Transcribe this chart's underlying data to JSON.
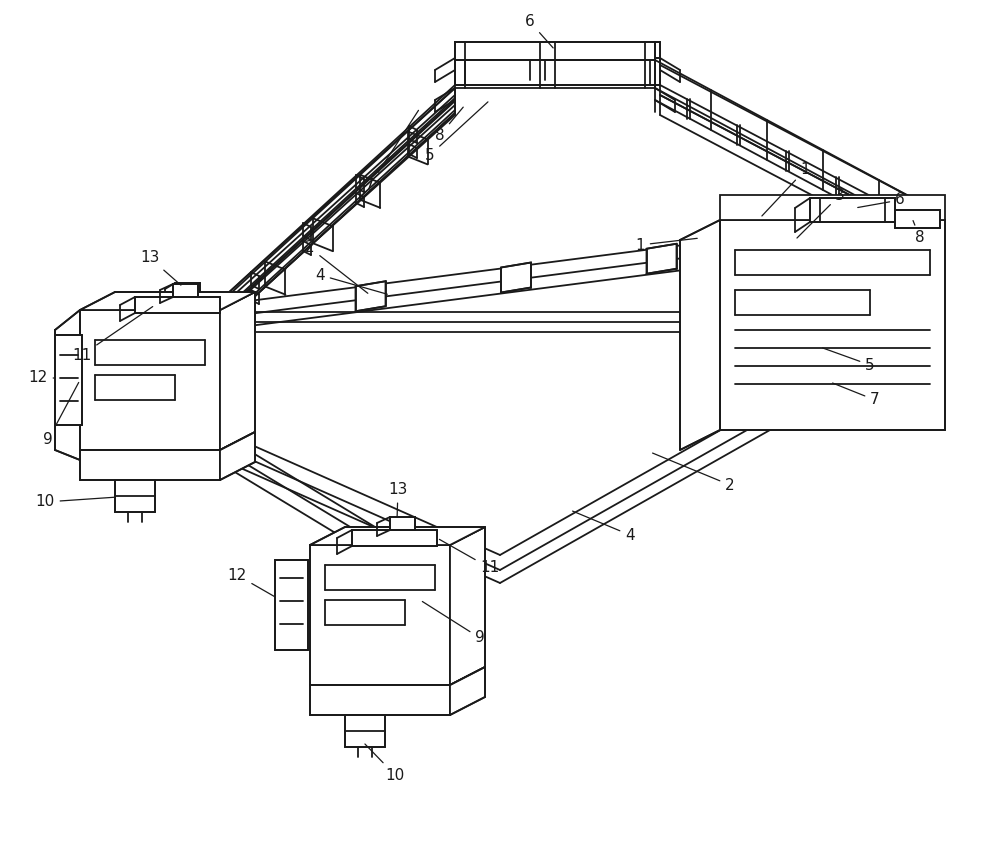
{
  "background_color": "#ffffff",
  "line_color": "#1a1a1a",
  "lw": 1.3,
  "label_fontsize": 11,
  "fig_width": 10.0,
  "fig_height": 8.51
}
